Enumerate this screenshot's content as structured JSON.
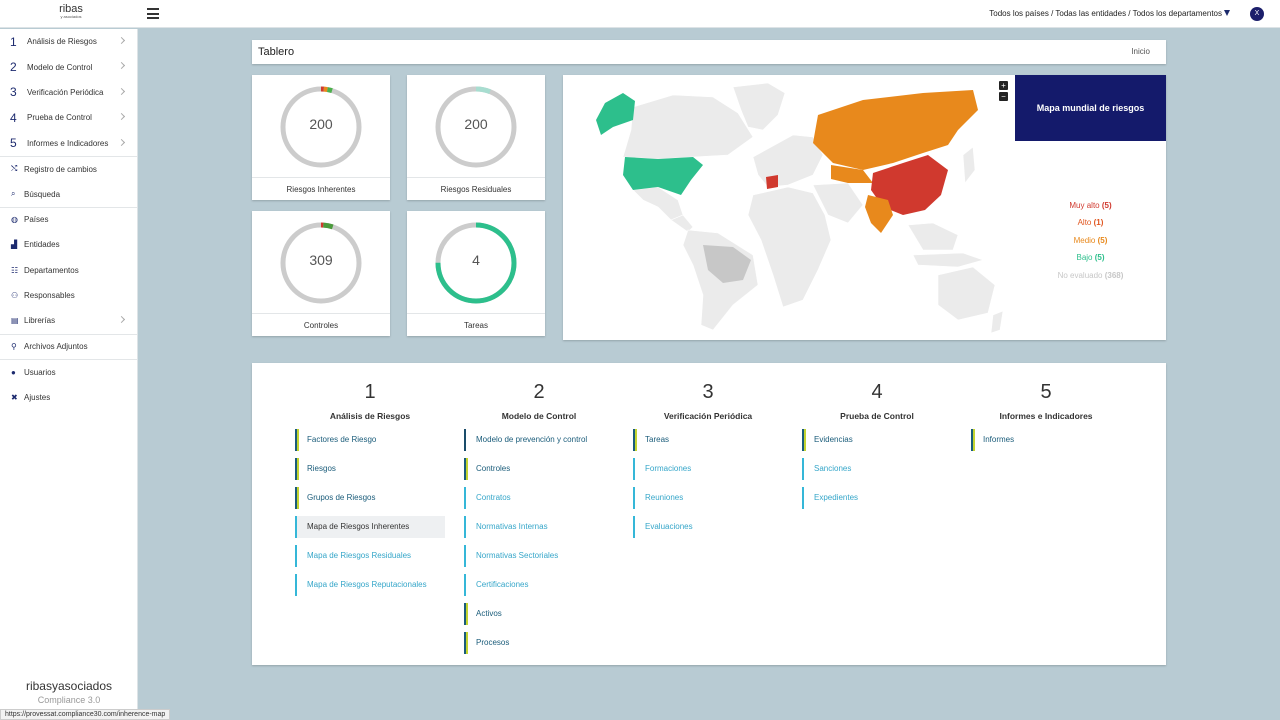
{
  "header": {
    "logo_main": "ribas",
    "logo_sub": "y asociados",
    "filters": "Todos los países / Todas las entidades / Todos los departamentos",
    "avatar": "X"
  },
  "sidebar": {
    "numbered": [
      {
        "num": "1",
        "label": "Análisis de Riesgos"
      },
      {
        "num": "2",
        "label": "Modelo de Control"
      },
      {
        "num": "3",
        "label": "Verificación Periódica"
      },
      {
        "num": "4",
        "label": "Prueba de Control"
      },
      {
        "num": "5",
        "label": "Informes e Indicadores"
      }
    ],
    "items": [
      {
        "icon": "⤭",
        "label": "Registro de cambios"
      },
      {
        "icon": "⌕",
        "label": "Búsqueda"
      },
      {
        "icon": "◍",
        "label": "Países"
      },
      {
        "icon": "▟",
        "label": "Entidades"
      },
      {
        "icon": "☷",
        "label": "Departamentos"
      },
      {
        "icon": "⚇",
        "label": "Responsables"
      },
      {
        "icon": "▤",
        "label": "Librerías"
      },
      {
        "icon": "⚲",
        "label": "Archivos Adjuntos"
      },
      {
        "icon": "●",
        "label": "Usuarios"
      },
      {
        "icon": "✖",
        "label": "Ajustes"
      }
    ],
    "brand_a": "ribas",
    "brand_b": "yasociados",
    "brand_product": "Compliance 3.0"
  },
  "status_url": "https://provessat.compliance30.com/inherence-map",
  "dashboard": {
    "title": "Tablero",
    "home": "Inicio",
    "donuts": [
      {
        "value": "200",
        "label": "Riesgos Inherentes",
        "segments": [
          {
            "fraction": 0.012,
            "color": "#d0392e"
          },
          {
            "fraction": 0.015,
            "color": "#e8891c"
          },
          {
            "fraction": 0.02,
            "color": "#4bb04b"
          }
        ]
      },
      {
        "value": "200",
        "label": "Riesgos Residuales",
        "segments": [
          {
            "fraction": 0.06,
            "color": "#a8ddd0"
          }
        ]
      },
      {
        "value": "309",
        "label": "Controles",
        "segments": [
          {
            "fraction": 0.01,
            "color": "#d0392e"
          },
          {
            "fraction": 0.04,
            "color": "#4b9a3c"
          }
        ]
      },
      {
        "value": "4",
        "label": "Tareas",
        "segments": [
          {
            "fraction": 0.75,
            "color": "#2dbf8c"
          }
        ]
      }
    ],
    "map": {
      "title": "Mapa mundial de riesgos",
      "zoom_in": "+",
      "zoom_out": "−",
      "legend": [
        {
          "label": "Muy alto",
          "count": "(5)",
          "color": "#d0392e"
        },
        {
          "label": "Alto",
          "count": "(1)",
          "color": "#e0561f"
        },
        {
          "label": "Medio",
          "count": "(5)",
          "color": "#e8891c"
        },
        {
          "label": "Bajo",
          "count": "(5)",
          "color": "#2dbf8c"
        },
        {
          "label": "No evaluado",
          "count": "(368)",
          "color": "#c7c7c7"
        }
      ]
    }
  },
  "modules": [
    {
      "num": "1",
      "title": "Análisis de Riesgos",
      "links": [
        {
          "label": "Factores de Riesgo",
          "style": "dual"
        },
        {
          "label": "Riesgos",
          "style": "dual"
        },
        {
          "label": "Grupos de Riesgos",
          "style": "dual"
        },
        {
          "label": "Mapa de Riesgos Inherentes",
          "style": "hover"
        },
        {
          "label": "Mapa de Riesgos Residuales",
          "style": "light"
        },
        {
          "label": "Mapa de Riesgos Reputacionales",
          "style": "light"
        }
      ]
    },
    {
      "num": "2",
      "title": "Modelo de Control",
      "links": [
        {
          "label": "Modelo de prevención y control",
          "style": "navy"
        },
        {
          "label": "Controles",
          "style": "dual"
        },
        {
          "label": "Contratos",
          "style": "light"
        },
        {
          "label": "Normativas Internas",
          "style": "light"
        },
        {
          "label": "Normativas Sectoriales",
          "style": "light"
        },
        {
          "label": "Certificaciones",
          "style": "light"
        },
        {
          "label": "Activos",
          "style": "dual"
        },
        {
          "label": "Procesos",
          "style": "dual"
        }
      ]
    },
    {
      "num": "3",
      "title": "Verificación Periódica",
      "links": [
        {
          "label": "Tareas",
          "style": "dual"
        },
        {
          "label": "Formaciones",
          "style": "light"
        },
        {
          "label": "Reuniones",
          "style": "light"
        },
        {
          "label": "Evaluaciones",
          "style": "light"
        }
      ]
    },
    {
      "num": "4",
      "title": "Prueba de Control",
      "links": [
        {
          "label": "Evidencias",
          "style": "dual"
        },
        {
          "label": "Sanciones",
          "style": "light"
        },
        {
          "label": "Expedientes",
          "style": "light"
        }
      ]
    },
    {
      "num": "5",
      "title": "Informes e Indicadores",
      "links": [
        {
          "label": "Informes",
          "style": "dual"
        }
      ]
    }
  ]
}
